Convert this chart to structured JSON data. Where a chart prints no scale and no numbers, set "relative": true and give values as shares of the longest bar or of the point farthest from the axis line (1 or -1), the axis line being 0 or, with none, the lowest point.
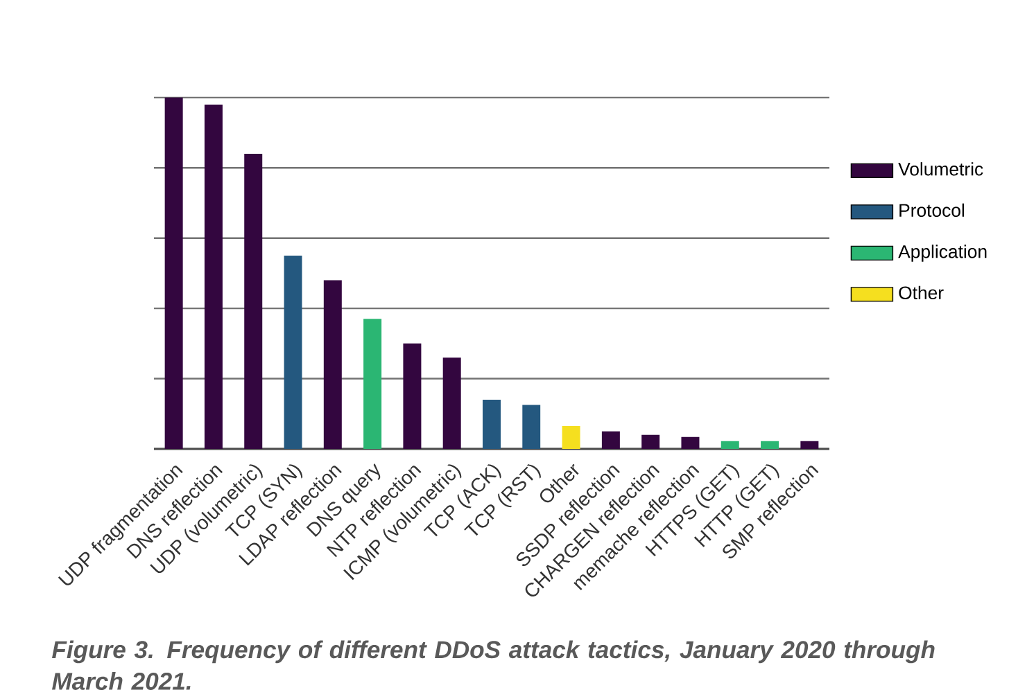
{
  "chart_data": {
    "type": "bar",
    "relative": true,
    "grid": "y",
    "legend": "right",
    "categories": [
      "UDP fragmentation",
      "DNS reflection",
      "UDP (volumetric)",
      "TCP (SYN)",
      "LDAP reflection",
      "DNS query",
      "NTP reflection",
      "ICMP (volumetric)",
      "TCP (ACK)",
      "TCP (RST)",
      "Other",
      "SSDP reflection",
      "CHARGEN reflection",
      "memache reflection",
      "HTTPS (GET)",
      "HTTP (GET)",
      "SMP reflection"
    ],
    "series": [
      {
        "name": "Volumetric",
        "color": "#33063f",
        "values": [
          1.0,
          0.98,
          0.84,
          null,
          0.48,
          null,
          0.3,
          0.26,
          null,
          null,
          null,
          0.05,
          0.04,
          0.034,
          null,
          null,
          0.022
        ]
      },
      {
        "name": "Protocol",
        "color": "#24587f",
        "values": [
          null,
          null,
          null,
          0.55,
          null,
          null,
          null,
          null,
          0.14,
          0.125,
          null,
          null,
          null,
          null,
          null,
          null,
          null
        ]
      },
      {
        "name": "Application",
        "color": "#2bb673",
        "values": [
          null,
          null,
          null,
          null,
          null,
          0.37,
          null,
          null,
          null,
          null,
          null,
          null,
          null,
          null,
          0.022,
          0.022,
          null
        ]
      },
      {
        "name": "Other",
        "color": "#f5df1f",
        "values": [
          null,
          null,
          null,
          null,
          null,
          null,
          null,
          null,
          null,
          null,
          0.065,
          null,
          null,
          null,
          null,
          null,
          null
        ]
      }
    ],
    "annotations": [
      "Figure 3. Frequency of different DDoS attack tactics, January 2020 through March 2021."
    ]
  }
}
